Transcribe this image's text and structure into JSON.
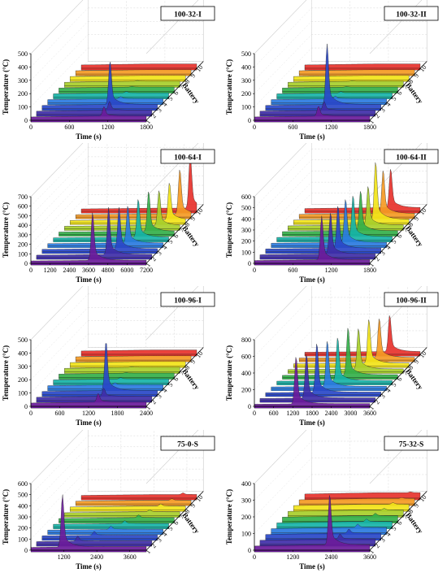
{
  "chart_data": [
    {
      "type": "area",
      "title": "100-32-I",
      "xlabel": "Time (s)",
      "ylabel": "Temperature (°C)",
      "zlabel": "Battery",
      "x_ticks": [
        0,
        600,
        1200,
        1800
      ],
      "xlim": [
        0,
        1800
      ],
      "y_ticks": [
        0,
        100,
        200,
        300,
        400,
        500
      ],
      "ylim": [
        0,
        500
      ],
      "battery_ticks": [
        1,
        2,
        3,
        4,
        5,
        6,
        7,
        8,
        9,
        10
      ],
      "series": [
        {
          "battery": 1,
          "peak_time": 1140,
          "peak_temp": 95
        },
        {
          "battery": 2,
          "peak_time": 1140,
          "peak_temp": 90
        },
        {
          "battery": 3,
          "peak_time": 1060,
          "peak_temp": 355
        },
        {
          "battery": 4,
          "peak_time": 1140,
          "peak_temp": 40
        },
        {
          "battery": 5,
          "peak_time": 1140,
          "peak_temp": 35
        },
        {
          "battery": 6,
          "peak_time": 1140,
          "peak_temp": 30
        },
        {
          "battery": 7,
          "peak_time": 1140,
          "peak_temp": 30
        },
        {
          "battery": 8,
          "peak_time": 1140,
          "peak_temp": 25
        },
        {
          "battery": 9,
          "peak_time": 1140,
          "peak_temp": 25
        },
        {
          "battery": 10,
          "peak_time": 1140,
          "peak_temp": 25
        }
      ]
    },
    {
      "type": "area",
      "title": "100-32-II",
      "xlabel": "Time (s)",
      "ylabel": "Temperature (°C)",
      "zlabel": "Battery",
      "x_ticks": [
        0,
        600,
        1200,
        1800
      ],
      "xlim": [
        0,
        1800
      ],
      "y_ticks": [
        0,
        100,
        200,
        300,
        400,
        500
      ],
      "ylim": [
        0,
        500
      ],
      "battery_ticks": [
        1,
        2,
        3,
        4,
        5,
        6,
        7,
        8,
        9,
        10
      ],
      "series": [
        {
          "battery": 1,
          "peak_time": 1000,
          "peak_temp": 100
        },
        {
          "battery": 2,
          "peak_time": 1000,
          "peak_temp": 90
        },
        {
          "battery": 3,
          "peak_time": 960,
          "peak_temp": 480
        },
        {
          "battery": 4,
          "peak_time": 1000,
          "peak_temp": 45
        },
        {
          "battery": 5,
          "peak_time": 1000,
          "peak_temp": 35
        },
        {
          "battery": 6,
          "peak_time": 1000,
          "peak_temp": 30
        },
        {
          "battery": 7,
          "peak_time": 1000,
          "peak_temp": 30
        },
        {
          "battery": 8,
          "peak_time": 1000,
          "peak_temp": 25
        },
        {
          "battery": 9,
          "peak_time": 1000,
          "peak_temp": 25
        },
        {
          "battery": 10,
          "peak_time": 1000,
          "peak_temp": 25
        }
      ]
    },
    {
      "type": "area",
      "title": "100-64-I",
      "xlabel": "Time (s)",
      "ylabel": "Temperature (°C)",
      "zlabel": "Battery",
      "x_ticks": [
        0,
        1200,
        2400,
        3600,
        4800,
        6000,
        7200
      ],
      "xlim": [
        0,
        7200
      ],
      "y_ticks": [
        0,
        100,
        200,
        300,
        400,
        500,
        600,
        700
      ],
      "ylim": [
        0,
        700
      ],
      "battery_ticks": [
        1,
        2,
        3,
        4,
        5,
        6,
        7,
        8,
        9,
        10
      ],
      "series": [
        {
          "battery": 1,
          "peak_time": 3850,
          "peak_temp": 530
        },
        {
          "battery": 2,
          "peak_time": 4500,
          "peak_temp": 520
        },
        {
          "battery": 3,
          "peak_time": 4800,
          "peak_temp": 460
        },
        {
          "battery": 4,
          "peak_time": 5000,
          "peak_temp": 420
        },
        {
          "battery": 5,
          "peak_time": 5300,
          "peak_temp": 430
        },
        {
          "battery": 6,
          "peak_time": 5600,
          "peak_temp": 450
        },
        {
          "battery": 7,
          "peak_time": 5900,
          "peak_temp": 400
        },
        {
          "battery": 8,
          "peak_time": 6200,
          "peak_temp": 420
        },
        {
          "battery": 9,
          "peak_time": 6500,
          "peak_temp": 500
        },
        {
          "battery": 10,
          "peak_time": 6800,
          "peak_temp": 600
        }
      ]
    },
    {
      "type": "area",
      "title": "100-64-II",
      "xlabel": "Time (s)",
      "ylabel": "Temperature (°C)",
      "zlabel": "Battery",
      "x_ticks": [
        0,
        600,
        1200,
        1800
      ],
      "xlim": [
        0,
        1800
      ],
      "y_ticks": [
        0,
        100,
        200,
        300,
        400,
        500,
        600
      ],
      "ylim": [
        0,
        600
      ],
      "battery_ticks": [
        1,
        2,
        3,
        4,
        5,
        6,
        7,
        8,
        9,
        10
      ],
      "series": [
        {
          "battery": 1,
          "peak_time": 1050,
          "peak_temp": 420
        },
        {
          "battery": 2,
          "peak_time": 1100,
          "peak_temp": 400
        },
        {
          "battery": 3,
          "peak_time": 1130,
          "peak_temp": 410
        },
        {
          "battery": 4,
          "peak_time": 1160,
          "peak_temp": 420
        },
        {
          "battery": 5,
          "peak_time": 1190,
          "peak_temp": 400
        },
        {
          "battery": 6,
          "peak_time": 1220,
          "peak_temp": 390
        },
        {
          "battery": 7,
          "peak_time": 1250,
          "peak_temp": 380
        },
        {
          "battery": 8,
          "peak_time": 1280,
          "peak_temp": 550
        },
        {
          "battery": 9,
          "peak_time": 1310,
          "peak_temp": 420
        },
        {
          "battery": 10,
          "peak_time": 1340,
          "peak_temp": 380
        }
      ]
    },
    {
      "type": "area",
      "title": "100-96-I",
      "xlabel": "Time (s)",
      "ylabel": "Temperature (°C)",
      "zlabel": "Battery",
      "x_ticks": [
        0,
        600,
        1200,
        1800,
        2400
      ],
      "xlim": [
        0,
        2400
      ],
      "y_ticks": [
        0,
        100,
        200,
        300,
        400,
        500
      ],
      "ylim": [
        0,
        500
      ],
      "battery_ticks": [
        1,
        2,
        3,
        4,
        5,
        6,
        7,
        8,
        9,
        10
      ],
      "series": [
        {
          "battery": 1,
          "peak_time": 1400,
          "peak_temp": 90
        },
        {
          "battery": 2,
          "peak_time": 1400,
          "peak_temp": 85
        },
        {
          "battery": 3,
          "peak_time": 1330,
          "peak_temp": 400
        },
        {
          "battery": 4,
          "peak_time": 1400,
          "peak_temp": 40
        },
        {
          "battery": 5,
          "peak_time": 1400,
          "peak_temp": 35
        },
        {
          "battery": 6,
          "peak_time": 1400,
          "peak_temp": 30
        },
        {
          "battery": 7,
          "peak_time": 1400,
          "peak_temp": 30
        },
        {
          "battery": 8,
          "peak_time": 1400,
          "peak_temp": 25
        },
        {
          "battery": 9,
          "peak_time": 1400,
          "peak_temp": 25
        },
        {
          "battery": 10,
          "peak_time": 1400,
          "peak_temp": 25
        }
      ]
    },
    {
      "type": "area",
      "title": "100-96-II",
      "xlabel": "Time (s)",
      "ylabel": "Temperature (°C)",
      "zlabel": "Battery",
      "x_ticks": [
        0,
        600,
        1200,
        1800,
        2400,
        3000,
        3600
      ],
      "xlim": [
        0,
        3600
      ],
      "y_ticks": [
        0,
        200,
        400,
        600,
        800
      ],
      "ylim": [
        0,
        800
      ],
      "battery_ticks": [
        1,
        2,
        3,
        4,
        5,
        6,
        7,
        8,
        9,
        10
      ],
      "series": [
        {
          "battery": 1,
          "peak_time": 1300,
          "peak_temp": 600
        },
        {
          "battery": 2,
          "peak_time": 1450,
          "peak_temp": 560
        },
        {
          "battery": 3,
          "peak_time": 1600,
          "peak_temp": 620
        },
        {
          "battery": 4,
          "peak_time": 1750,
          "peak_temp": 580
        },
        {
          "battery": 5,
          "peak_time": 1900,
          "peak_temp": 550
        },
        {
          "battery": 6,
          "peak_time": 2050,
          "peak_temp": 600
        },
        {
          "battery": 7,
          "peak_time": 2200,
          "peak_temp": 520
        },
        {
          "battery": 8,
          "peak_time": 2350,
          "peak_temp": 560
        },
        {
          "battery": 9,
          "peak_time": 2500,
          "peak_temp": 500
        },
        {
          "battery": 10,
          "peak_time": 2650,
          "peak_temp": 470
        }
      ]
    },
    {
      "type": "area",
      "title": "75-0-S",
      "xlabel": "Time (s)",
      "ylabel": "Temperature (°C)",
      "zlabel": "Battery",
      "x_ticks": [
        1200,
        2400,
        3600
      ],
      "xlim": [
        0,
        4200
      ],
      "y_ticks": [
        0,
        100,
        200,
        300,
        400,
        500,
        600
      ],
      "ylim": [
        0,
        600
      ],
      "battery_ticks": [
        1,
        2,
        3,
        4,
        5,
        6,
        7,
        8,
        9,
        10
      ],
      "series": [
        {
          "battery": 1,
          "peak_time": 1150,
          "peak_temp": 500
        },
        {
          "battery": 2,
          "peak_time": 1500,
          "peak_temp": 70
        },
        {
          "battery": 3,
          "peak_time": 1900,
          "peak_temp": 60
        },
        {
          "battery": 4,
          "peak_time": 2300,
          "peak_temp": 55
        },
        {
          "battery": 5,
          "peak_time": 2600,
          "peak_temp": 50
        },
        {
          "battery": 6,
          "peak_time": 2900,
          "peak_temp": 50
        },
        {
          "battery": 7,
          "peak_time": 3100,
          "peak_temp": 45
        },
        {
          "battery": 8,
          "peak_time": 3300,
          "peak_temp": 45
        },
        {
          "battery": 9,
          "peak_time": 3500,
          "peak_temp": 40
        },
        {
          "battery": 10,
          "peak_time": 3700,
          "peak_temp": 40
        }
      ]
    },
    {
      "type": "area",
      "title": "75-32-S",
      "xlabel": "Time (s)",
      "ylabel": "Temperature (°C)",
      "zlabel": "Battery",
      "x_ticks": [
        0,
        1200,
        2400,
        3600
      ],
      "xlim": [
        0,
        3600
      ],
      "y_ticks": [
        0,
        100,
        200,
        300,
        400
      ],
      "ylim": [
        0,
        400
      ],
      "battery_ticks": [
        1,
        2,
        3,
        4,
        5,
        6,
        7,
        8,
        9,
        10
      ],
      "series": [
        {
          "battery": 1,
          "peak_time": 2350,
          "peak_temp": 330
        },
        {
          "battery": 2,
          "peak_time": 2500,
          "peak_temp": 55
        },
        {
          "battery": 3,
          "peak_time": 2600,
          "peak_temp": 50
        },
        {
          "battery": 4,
          "peak_time": 2700,
          "peak_temp": 45
        },
        {
          "battery": 5,
          "peak_time": 2800,
          "peak_temp": 40
        },
        {
          "battery": 6,
          "peak_time": 2900,
          "peak_temp": 40
        },
        {
          "battery": 7,
          "peak_time": 3000,
          "peak_temp": 35
        },
        {
          "battery": 8,
          "peak_time": 3100,
          "peak_temp": 35
        },
        {
          "battery": 9,
          "peak_time": 3200,
          "peak_temp": 30
        },
        {
          "battery": 10,
          "peak_time": 3300,
          "peak_temp": 30
        }
      ]
    }
  ],
  "colors": [
    "#6a1b9a",
    "#3f2ea8",
    "#2948c8",
    "#2a7be0",
    "#16b3a6",
    "#34b04a",
    "#a8cf2a",
    "#f2e419",
    "#f59a24",
    "#e7322c"
  ]
}
